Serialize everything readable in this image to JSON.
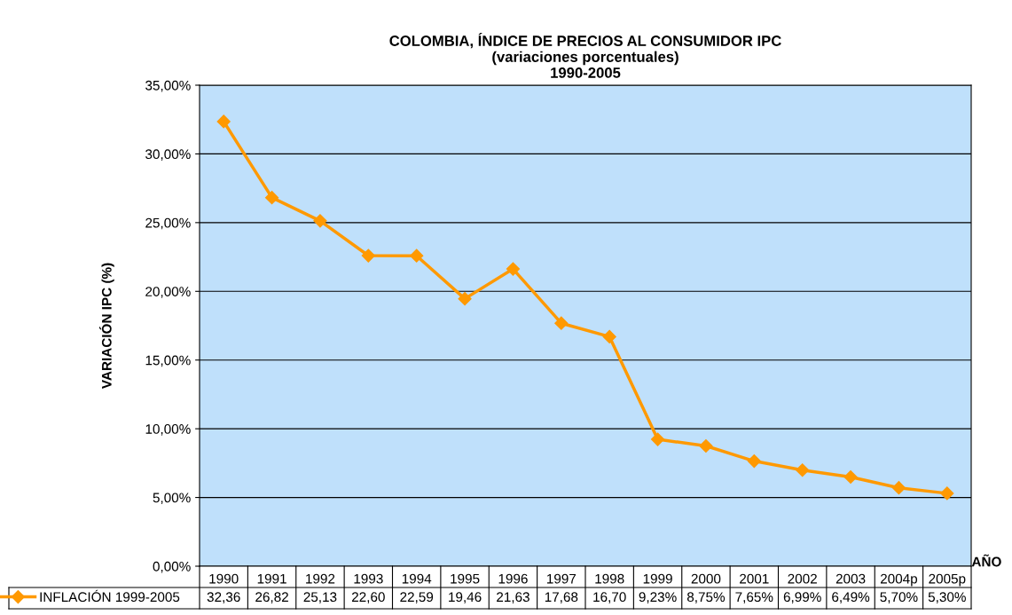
{
  "chart_data": {
    "type": "line",
    "title": "COLOMBIA, ÍNDICE DE PRECIOS AL CONSUMIDOR IPC\n(variaciones porcentuales)\n1990-2005",
    "xlabel": "AÑO",
    "ylabel": "VARIACIÓN IPC (%)",
    "categories": [
      "1990",
      "1991",
      "1992",
      "1993",
      "1994",
      "1995",
      "1996",
      "1997",
      "1998",
      "1999",
      "2000",
      "2001",
      "2002",
      "2003",
      "2004p",
      "2005p"
    ],
    "series": [
      {
        "name": "INFLACIÓN 1999-2005",
        "color": "#ff9900",
        "values": [
          32.36,
          26.82,
          25.13,
          22.6,
          22.59,
          19.46,
          21.63,
          17.68,
          16.7,
          9.23,
          8.75,
          7.65,
          6.99,
          6.49,
          5.7,
          5.3
        ],
        "value_labels": [
          "32,36",
          "26,82",
          "25,13",
          "22,60",
          "22,59",
          "19,46",
          "21,63",
          "17,68",
          "16,70",
          "9,23%",
          "8,75%",
          "7,65%",
          "6,99%",
          "6,49%",
          "5,70%",
          "5,30%"
        ]
      }
    ],
    "ylim": [
      0,
      35
    ],
    "yticks": [
      {
        "value": 0,
        "label": "0,00%"
      },
      {
        "value": 5,
        "label": "5,00%"
      },
      {
        "value": 10,
        "label": "10,00%"
      },
      {
        "value": 15,
        "label": "15,00%"
      },
      {
        "value": 20,
        "label": "20,00%"
      },
      {
        "value": 25,
        "label": "25,00%"
      },
      {
        "value": 30,
        "label": "30,00%"
      },
      {
        "value": 35,
        "label": "35,00%"
      }
    ],
    "grid": "y",
    "marker": "diamond",
    "line_style": "solid",
    "legend": "bottom"
  }
}
